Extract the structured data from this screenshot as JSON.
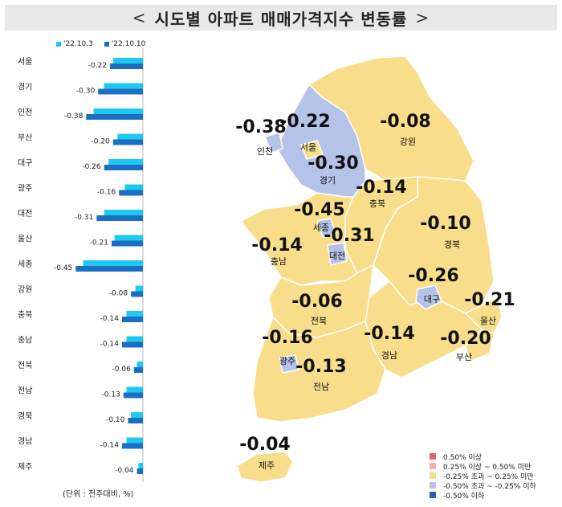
{
  "title": "시도별 아파트 매매가격지수 변동률",
  "title_left": "<",
  "title_right": ">",
  "colors": {
    "series1": "#1ec8f0",
    "series2": "#1a6fc4",
    "land_yellow": "#f8dd8a",
    "land_blue": "#b6c3e8",
    "land_border": "#ffffff"
  },
  "unit_note": "(단위 : 전주대비, %)",
  "map_legend": [
    {
      "label": "0.50% 이상",
      "color": "#e0646a"
    },
    {
      "label": "0.25% 이상 ~ 0.50% 미만",
      "color": "#f2b1b3"
    },
    {
      "label": "-0.25% 초과 ~ 0.25% 미만",
      "color": "#f8dd8a"
    },
    {
      "label": "-0.50% 초과 ~ -0.25% 이하",
      "color": "#b6c3e8"
    },
    {
      "label": "-0.50% 이하",
      "color": "#2f5cb0"
    }
  ],
  "map_labels": [
    {
      "name": "인천",
      "value": "-0.38"
    },
    {
      "name": "서울",
      "value": "-0.22"
    },
    {
      "name": "경기",
      "value": "-0.30"
    },
    {
      "name": "강원",
      "value": "-0.08"
    },
    {
      "name": "충북",
      "value": "-0.14"
    },
    {
      "name": "세종",
      "value": "-0.45"
    },
    {
      "name": "충남",
      "value": "-0.14"
    },
    {
      "name": "대전",
      "value": "-0.31"
    },
    {
      "name": "경북",
      "value": "-0.10"
    },
    {
      "name": "대구",
      "value": "-0.26"
    },
    {
      "name": "전북",
      "value": "-0.06"
    },
    {
      "name": "울산",
      "value": "-0.21"
    },
    {
      "name": "광주",
      "value": "-0.16"
    },
    {
      "name": "경남",
      "value": "-0.14"
    },
    {
      "name": "부산",
      "value": "-0.20"
    },
    {
      "name": "전남",
      "value": "-0.13"
    },
    {
      "name": "제주",
      "value": "-0.04"
    }
  ],
  "chart_data": {
    "type": "bar",
    "orientation": "horizontal",
    "categories": [
      "서울",
      "경기",
      "인천",
      "부산",
      "대구",
      "광주",
      "대전",
      "울산",
      "세종",
      "강원",
      "충북",
      "충남",
      "전북",
      "전남",
      "경북",
      "경남",
      "제주"
    ],
    "series": [
      {
        "name": "'22.10.3",
        "values": [
          -0.2,
          -0.26,
          -0.33,
          -0.17,
          -0.23,
          -0.12,
          -0.26,
          -0.19,
          -0.4,
          -0.05,
          -0.11,
          -0.11,
          -0.04,
          -0.11,
          -0.08,
          -0.11,
          -0.03
        ]
      },
      {
        "name": "'22.10.10",
        "values": [
          -0.22,
          -0.3,
          -0.38,
          -0.2,
          -0.26,
          -0.16,
          -0.31,
          -0.21,
          -0.45,
          -0.08,
          -0.14,
          -0.14,
          -0.06,
          -0.13,
          -0.1,
          -0.14,
          -0.04
        ]
      }
    ],
    "data_labels": [
      "-0.22",
      "-0.30",
      "-0.38",
      "-0.20",
      "-0.26",
      "-0.16",
      "-0.31",
      "-0.21",
      "-0.45",
      "-0.08",
      "-0.14",
      "-0.14",
      "-0.06",
      "-0.13",
      "-0.10",
      "-0.14",
      "-0.04"
    ],
    "xlim": [
      -0.5,
      0
    ]
  }
}
